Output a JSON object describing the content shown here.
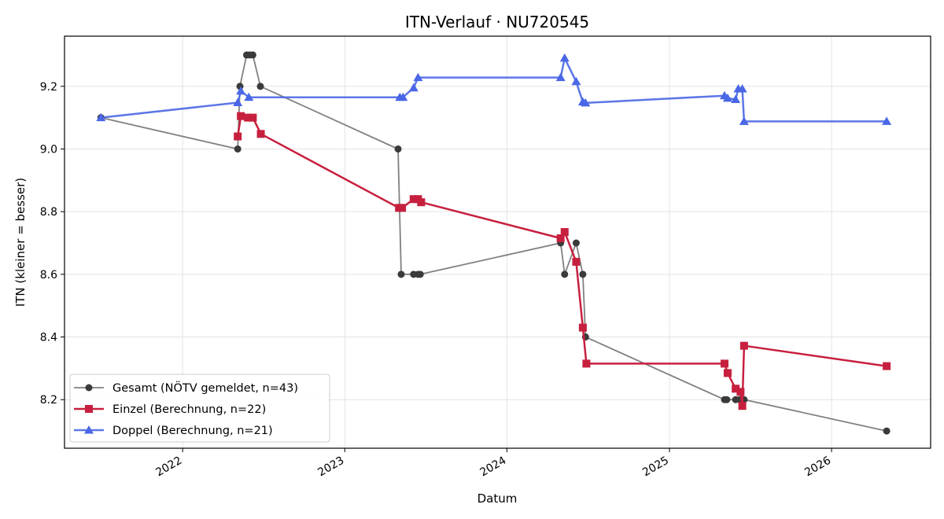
{
  "chart_data": {
    "type": "line",
    "title": "ITN-Verlauf · NU720545",
    "xlabel": "Datum",
    "ylabel": "ITN  (kleiner = besser)",
    "x_axis_type": "date",
    "xlim": [
      "2021-04-10",
      "2026-08-12"
    ],
    "ylim": [
      8.045,
      9.36
    ],
    "x_ticks": [
      "2022",
      "2023",
      "2024",
      "2025",
      "2026"
    ],
    "y_ticks": [
      "8.2",
      "8.4",
      "8.6",
      "8.8",
      "9.0",
      "9.2"
    ],
    "grid": true,
    "legend_position": "lower-left",
    "series": [
      {
        "name": "Gesamt (NÖTV gemeldet, n=43)",
        "color": "#555555",
        "marker": "circle",
        "x": [
          "2021-07-01",
          "2022-05-05",
          "2022-05-10",
          "2022-05-25",
          "2022-06-01",
          "2022-06-08",
          "2022-06-25",
          "2023-05-01",
          "2023-05-08",
          "2023-06-05",
          "2023-06-15",
          "2023-06-20",
          "2024-05-01",
          "2024-05-10",
          "2024-06-05",
          "2024-06-20",
          "2024-06-26",
          "2025-05-05",
          "2025-05-10",
          "2025-05-30",
          "2025-06-08",
          "2025-06-15",
          "2025-06-18",
          "2026-05-05"
        ],
        "values": [
          9.1,
          9.0,
          9.2,
          9.3,
          9.3,
          9.3,
          9.2,
          9.0,
          8.6,
          8.6,
          8.6,
          8.6,
          8.7,
          8.6,
          8.7,
          8.6,
          8.4,
          8.2,
          8.2,
          8.2,
          8.2,
          8.2,
          8.2,
          8.1
        ]
      },
      {
        "name": "Einzel (Berechnung, n=22)",
        "color": "#c7203e",
        "marker": "square",
        "x": [
          "2022-05-05",
          "2022-05-12",
          "2022-05-28",
          "2022-06-08",
          "2022-06-26",
          "2023-05-03",
          "2023-05-10",
          "2023-06-05",
          "2023-06-15",
          "2023-06-22",
          "2024-05-01",
          "2024-05-10",
          "2024-06-05",
          "2024-06-20",
          "2024-06-28",
          "2025-05-05",
          "2025-05-12",
          "2025-05-30",
          "2025-06-10",
          "2025-06-14",
          "2025-06-18",
          "2026-05-05"
        ],
        "values": [
          9.04,
          9.105,
          9.1,
          9.1,
          9.048,
          8.812,
          8.812,
          8.84,
          8.84,
          8.83,
          8.715,
          8.735,
          8.64,
          8.43,
          8.315,
          8.315,
          8.285,
          8.235,
          8.225,
          8.18,
          8.372,
          8.307
        ]
      },
      {
        "name": "Doppel (Berechnung, n=21)",
        "color": "#4a67e6",
        "marker": "triangle",
        "x": [
          "2021-07-01",
          "2022-05-05",
          "2022-05-12",
          "2022-05-30",
          "2023-05-05",
          "2023-05-12",
          "2023-06-05",
          "2023-06-15",
          "2024-05-01",
          "2024-05-10",
          "2024-06-05",
          "2024-06-20",
          "2024-06-26",
          "2025-05-05",
          "2025-05-12",
          "2025-05-30",
          "2025-06-05",
          "2025-06-14",
          "2025-06-18",
          "2026-05-05"
        ],
        "values": [
          9.1,
          9.148,
          9.185,
          9.165,
          9.165,
          9.165,
          9.195,
          9.228,
          9.228,
          9.29,
          9.215,
          9.15,
          9.147,
          9.17,
          9.162,
          9.158,
          9.192,
          9.192,
          9.088,
          9.088
        ]
      }
    ]
  }
}
